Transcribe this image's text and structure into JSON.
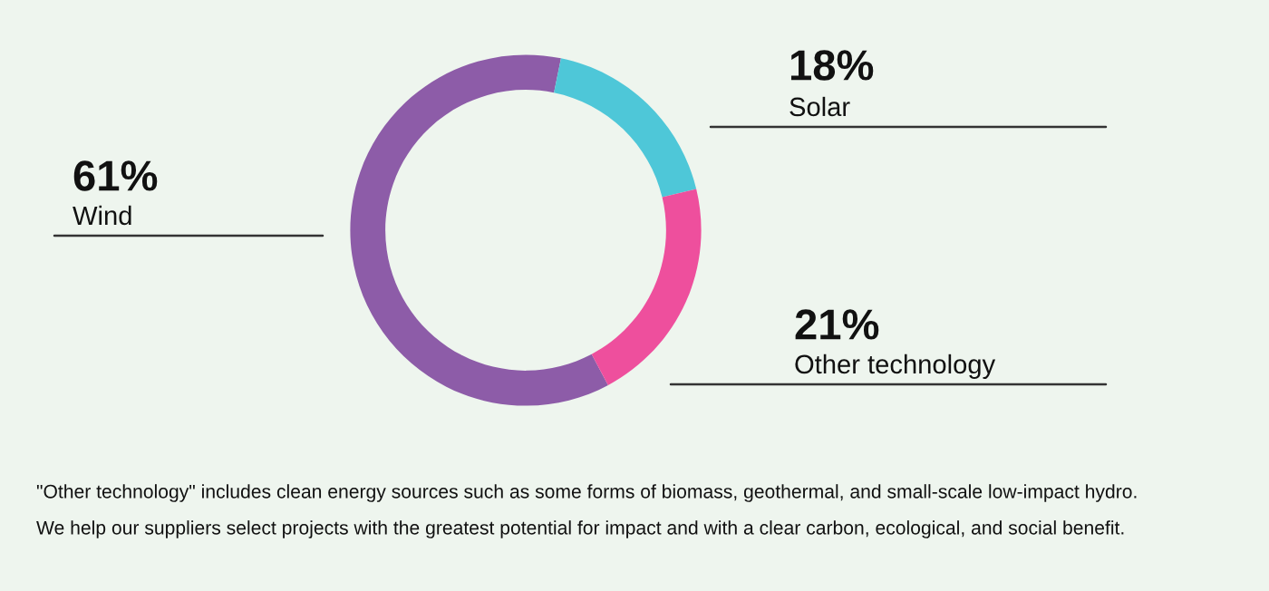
{
  "chart_data": {
    "type": "donut",
    "categories": [
      "Wind",
      "Solar",
      "Other technology"
    ],
    "values": [
      61,
      18,
      21
    ],
    "value_labels": [
      "61%",
      "18%",
      "21%"
    ],
    "colors": [
      "#8d5ca8",
      "#4ec7d8",
      "#ee4f9d"
    ],
    "annotations": [
      "\"Other technology\" includes clean energy sources such as some forms of biomass, geothermal, and small-scale low-impact hydro.",
      "We help our suppliers select projects with the greatest potential for impact and with a clear carbon, ecological, and social benefit."
    ]
  }
}
